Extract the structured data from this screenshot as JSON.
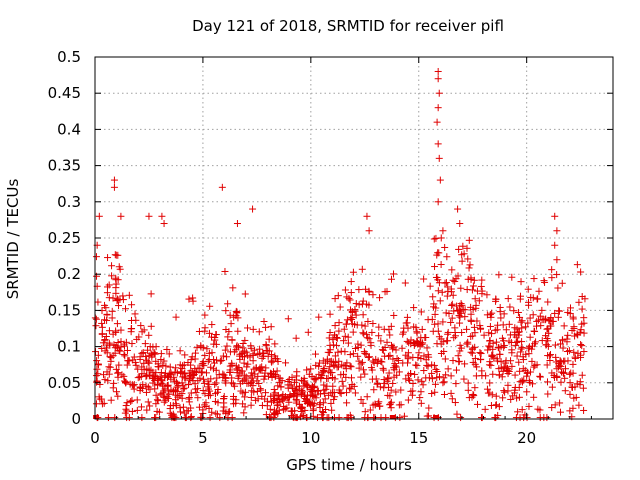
{
  "chart_data": {
    "type": "scatter",
    "title": "Day 121 of 2018, SRMTID for receiver pifl",
    "xlabel": "GPS time / hours",
    "ylabel": "SRMTID / TECUs",
    "xlim": [
      0,
      24
    ],
    "ylim": [
      0,
      0.5
    ],
    "x_ticks": [
      0,
      5,
      10,
      15,
      20
    ],
    "x_tick_labels": [
      "0",
      "5",
      "10",
      "15",
      "20"
    ],
    "y_ticks": [
      0,
      0.05,
      0.1,
      0.15,
      0.2,
      0.25,
      0.3,
      0.35,
      0.4,
      0.45,
      0.5
    ],
    "y_tick_labels": [
      "0",
      "0.05",
      "0.1",
      "0.15",
      "0.2",
      "0.25",
      "0.3",
      "0.35",
      "0.4",
      "0.45",
      "0.5"
    ],
    "grid": true,
    "marker": "plus",
    "color": "#e00000",
    "series": [
      {
        "name": "SRMTID",
        "notable_points": [
          {
            "x": 0.2,
            "y": 0.28
          },
          {
            "x": 0.1,
            "y": 0.24
          },
          {
            "x": 0.9,
            "y": 0.33
          },
          {
            "x": 0.9,
            "y": 0.32
          },
          {
            "x": 1.2,
            "y": 0.28
          },
          {
            "x": 2.5,
            "y": 0.28
          },
          {
            "x": 3.1,
            "y": 0.28
          },
          {
            "x": 3.2,
            "y": 0.27
          },
          {
            "x": 5.9,
            "y": 0.32
          },
          {
            "x": 7.3,
            "y": 0.29
          },
          {
            "x": 6.6,
            "y": 0.27
          },
          {
            "x": 12.6,
            "y": 0.28
          },
          {
            "x": 12.7,
            "y": 0.26
          },
          {
            "x": 15.9,
            "y": 0.48
          },
          {
            "x": 15.9,
            "y": 0.47
          },
          {
            "x": 15.95,
            "y": 0.45
          },
          {
            "x": 15.9,
            "y": 0.43
          },
          {
            "x": 15.85,
            "y": 0.41
          },
          {
            "x": 15.9,
            "y": 0.38
          },
          {
            "x": 15.95,
            "y": 0.36
          },
          {
            "x": 16.0,
            "y": 0.33
          },
          {
            "x": 15.9,
            "y": 0.3
          },
          {
            "x": 16.8,
            "y": 0.29
          },
          {
            "x": 16.9,
            "y": 0.27
          },
          {
            "x": 21.3,
            "y": 0.28
          },
          {
            "x": 21.4,
            "y": 0.26
          },
          {
            "x": 21.3,
            "y": 0.24
          },
          {
            "x": 21.4,
            "y": 0.22
          }
        ],
        "density_profile_x": [
          0,
          1,
          2,
          3,
          4,
          5,
          6,
          7,
          8,
          9,
          10,
          11,
          12,
          13,
          14,
          15,
          16,
          17,
          18,
          19,
          20,
          21,
          22,
          23
        ],
        "density_profile_mean_y": [
          0.09,
          0.12,
          0.07,
          0.05,
          0.04,
          0.06,
          0.08,
          0.06,
          0.06,
          0.03,
          0.03,
          0.06,
          0.12,
          0.06,
          0.08,
          0.09,
          0.13,
          0.13,
          0.09,
          0.08,
          0.09,
          0.1,
          0.08,
          0.1
        ],
        "zero_markers_x": [
          0.05,
          13.8,
          15.8
        ]
      }
    ]
  }
}
